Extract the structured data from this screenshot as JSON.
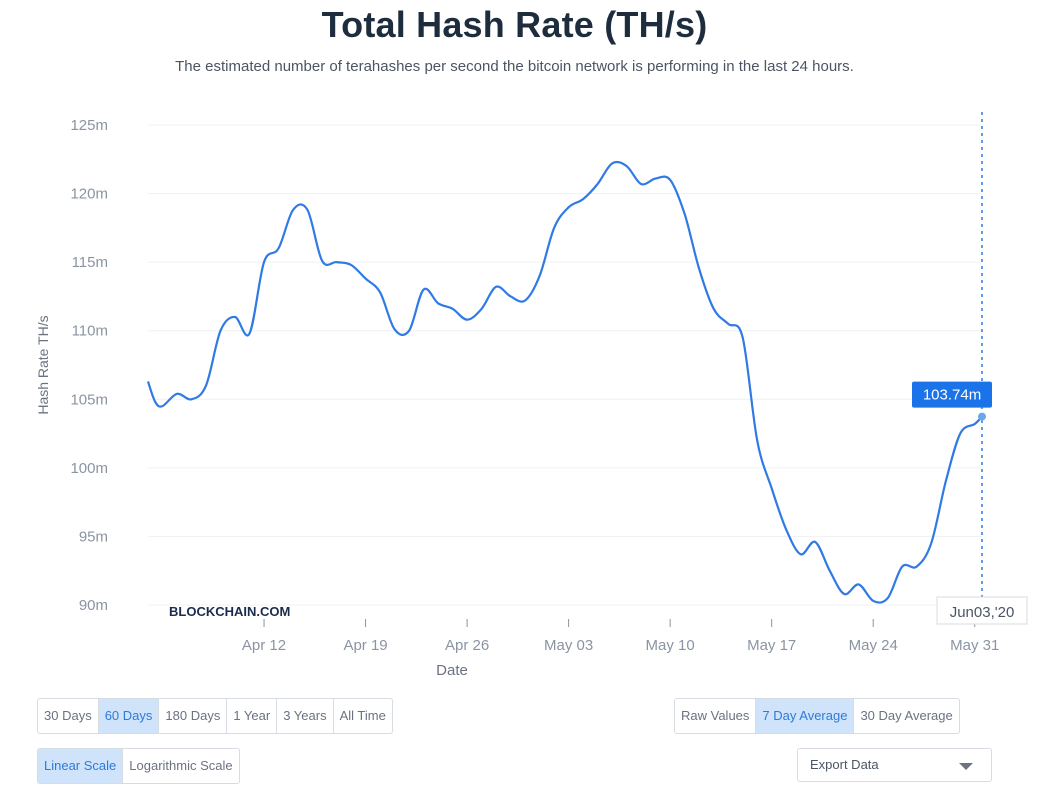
{
  "page": {
    "title": "Total Hash Rate (TH/s)",
    "subtitle": "The estimated number of terahashes per second the bitcoin network is performing in the last 24 hours.",
    "watermark": "BLOCKCHAIN.COM"
  },
  "chart_data": {
    "type": "line",
    "title": "Total Hash Rate (TH/s)",
    "xlabel": "Date",
    "ylabel": "Hash Rate TH/s",
    "ylim": [
      90,
      125
    ],
    "y_ticks": [
      "90m",
      "95m",
      "100m",
      "105m",
      "110m",
      "115m",
      "120m",
      "125m"
    ],
    "x_ticks": [
      "Apr 12",
      "Apr 19",
      "Apr 26",
      "May 03",
      "May 10",
      "May 17",
      "May 24",
      "May 31"
    ],
    "x_tick_days": [
      9,
      16,
      23,
      30,
      37,
      44,
      51,
      58
    ],
    "grid": "horizontal",
    "line_color": "#2f7ae5",
    "series": [
      {
        "values": [
          [
            1,
            106.3
          ],
          [
            1.5,
            104.8
          ],
          [
            2,
            104.5
          ],
          [
            3,
            105.4
          ],
          [
            4,
            105
          ],
          [
            5,
            106
          ],
          [
            6,
            110
          ],
          [
            7,
            111
          ],
          [
            8,
            109.8
          ],
          [
            9,
            115
          ],
          [
            10,
            116
          ],
          [
            11,
            118.8
          ],
          [
            12,
            118.8
          ],
          [
            13,
            115.1
          ],
          [
            14,
            115
          ],
          [
            15,
            114.8
          ],
          [
            16,
            113.8
          ],
          [
            17,
            112.8
          ],
          [
            18,
            110.1
          ],
          [
            19,
            110
          ],
          [
            20,
            113
          ],
          [
            21,
            112
          ],
          [
            22,
            111.6
          ],
          [
            23,
            110.8
          ],
          [
            24,
            111.6
          ],
          [
            25,
            113.2
          ],
          [
            26,
            112.5
          ],
          [
            27,
            112.2
          ],
          [
            28,
            114
          ],
          [
            29,
            117.5
          ],
          [
            30,
            119
          ],
          [
            31,
            119.6
          ],
          [
            32,
            120.7
          ],
          [
            33,
            122.2
          ],
          [
            34,
            122
          ],
          [
            35,
            120.7
          ],
          [
            36,
            121.1
          ],
          [
            37,
            121
          ],
          [
            38,
            118.5
          ],
          [
            39,
            114.5
          ],
          [
            40,
            111.6
          ],
          [
            41,
            110.5
          ],
          [
            42,
            109.5
          ],
          [
            43,
            102
          ],
          [
            44,
            98.5
          ],
          [
            45,
            95.5
          ],
          [
            46,
            93.7
          ],
          [
            47,
            94.6
          ],
          [
            48,
            92.5
          ],
          [
            49,
            90.8
          ],
          [
            50,
            91.5
          ],
          [
            51,
            90.3
          ],
          [
            52,
            90.5
          ],
          [
            53,
            92.8
          ],
          [
            54,
            92.8
          ],
          [
            55,
            94.5
          ],
          [
            56,
            99
          ],
          [
            57,
            102.5
          ],
          [
            58,
            103.2
          ],
          [
            58.5,
            103.74
          ]
        ]
      }
    ],
    "crosshair": {
      "value_label": "103.74m",
      "date_label": "Jun03,'20"
    }
  },
  "controls": {
    "range_buttons": [
      "30 Days",
      "60 Days",
      "180 Days",
      "1 Year",
      "3 Years",
      "All Time"
    ],
    "range_active": "60 Days",
    "avg_buttons": [
      "Raw Values",
      "7 Day Average",
      "30 Day Average"
    ],
    "avg_active": "7 Day Average",
    "scale_buttons": [
      "Linear Scale",
      "Logarithmic Scale"
    ],
    "scale_active": "Linear Scale",
    "export_label": "Export Data",
    "export_icon": "chevron-down-icon"
  }
}
